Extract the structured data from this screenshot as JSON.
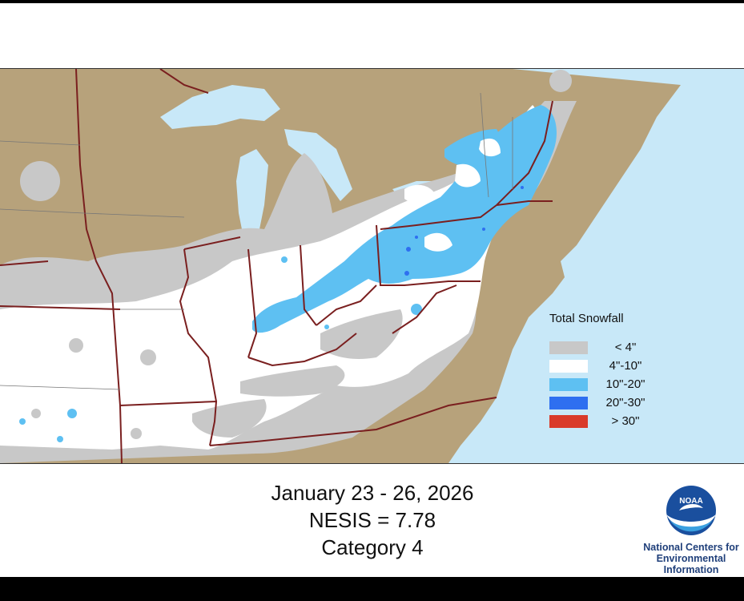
{
  "legend": {
    "title": "Total Snowfall",
    "items": [
      {
        "label": "< 4\"",
        "color": "#c8c8c8"
      },
      {
        "label": "4\"-10\"",
        "color": "#ffffff"
      },
      {
        "label": "10\"-20\"",
        "color": "#5ec0f2"
      },
      {
        "label": "20\"-30\"",
        "color": "#2e6ff0"
      },
      {
        "label": "> 30\"",
        "color": "#d93a2a"
      }
    ]
  },
  "caption": {
    "dates": "January 23 - 26, 2026",
    "nesis": "NESIS = 7.78",
    "category": "Category 4"
  },
  "agency": {
    "logo_text": "NOAA",
    "line1": "National Centers for",
    "line2": "Environmental",
    "line3": "Information"
  },
  "colors": {
    "land": "#b7a27b",
    "water": "#c8e8f8",
    "state_border": "#7a1f1f",
    "county_border": "#777777"
  }
}
